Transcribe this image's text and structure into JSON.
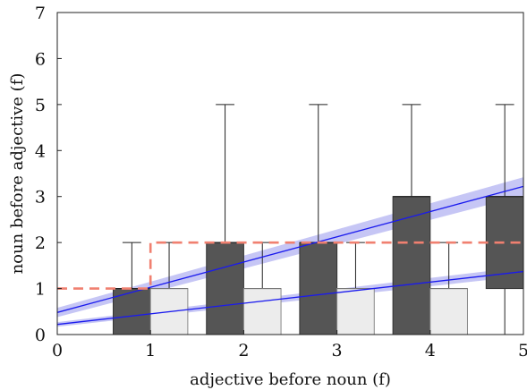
{
  "chart_data": {
    "type": "box",
    "xlabel": "adjective before noun (f)",
    "ylabel": "noun before adjective (f)",
    "xlim": [
      0,
      5
    ],
    "ylim": [
      0,
      7
    ],
    "xticks": [
      0,
      1,
      2,
      3,
      4,
      5
    ],
    "yticks": [
      0,
      1,
      2,
      3,
      4,
      5,
      6,
      7
    ],
    "grid": false,
    "colors": {
      "dark_box": "#555555",
      "light_box": "#ececec",
      "light_box_edge": "#8a8a8a",
      "regression_line": "#1a1aee",
      "confidence_band": "#a8a8f0",
      "step_line": "#f08070"
    },
    "series": [
      {
        "style": "dark",
        "boxes": [
          {
            "x": 0.8,
            "q1": 0,
            "median": 1,
            "q3": 1,
            "whisker_low": 0,
            "whisker_high": 2
          },
          {
            "x": 1.8,
            "q1": 0,
            "median": 2,
            "q3": 2,
            "whisker_low": 0,
            "whisker_high": 5
          },
          {
            "x": 2.8,
            "q1": 0,
            "median": 2,
            "q3": 2,
            "whisker_low": 0,
            "whisker_high": 5
          },
          {
            "x": 3.8,
            "q1": 0,
            "median": 3,
            "q3": 3,
            "whisker_low": 0,
            "whisker_high": 5
          },
          {
            "x": 4.8,
            "q1": 1,
            "median": 3,
            "q3": 3,
            "whisker_low": 0,
            "whisker_high": 5
          }
        ],
        "regression": {
          "x": [
            0,
            5
          ],
          "y": [
            0.48,
            3.22
          ],
          "band": 0.2
        }
      },
      {
        "style": "light",
        "boxes": [
          {
            "x": 1.2,
            "q1": 0,
            "median": 1,
            "q3": 1,
            "whisker_low": 0,
            "whisker_high": 2
          },
          {
            "x": 2.2,
            "q1": 0,
            "median": 1,
            "q3": 1,
            "whisker_low": 0,
            "whisker_high": 2
          },
          {
            "x": 3.2,
            "q1": 0,
            "median": 1,
            "q3": 1,
            "whisker_low": 0,
            "whisker_high": 2
          },
          {
            "x": 4.2,
            "q1": 0,
            "median": 1,
            "q3": 1,
            "whisker_low": 0,
            "whisker_high": 2
          }
        ],
        "regression": {
          "x": [
            0,
            5
          ],
          "y": [
            0.22,
            1.37
          ],
          "band": 0.1
        }
      }
    ],
    "step_line": {
      "x": [
        0,
        1,
        1,
        5
      ],
      "y": [
        1,
        1,
        2,
        2
      ]
    }
  }
}
